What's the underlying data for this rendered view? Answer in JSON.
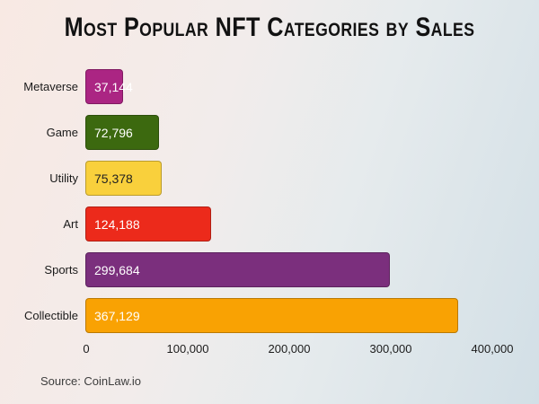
{
  "title": "Most Popular NFT Categories by Sales",
  "source": "Source: CoinLaw.io",
  "colors": {
    "background_left": "#f8e9e3",
    "background_right": "#d2dfe6",
    "title_text": "#121212",
    "axis_text": "#1c1c1c",
    "source_text": "#3d3d3d"
  },
  "chart_data": {
    "type": "bar",
    "orientation": "horizontal",
    "title": "Most Popular NFT Categories by Sales",
    "xlabel": "",
    "ylabel": "",
    "categories": [
      "Metaverse",
      "Game",
      "Utility",
      "Art",
      "Sports",
      "Collectible"
    ],
    "values": [
      37144,
      72796,
      75378,
      124188,
      299684,
      367129
    ],
    "value_labels": [
      "37,144",
      "72,796",
      "75,378",
      "124,188",
      "299,684",
      "367,129"
    ],
    "bar_colors": [
      "#ab2583",
      "#3c690f",
      "#f9d03c",
      "#ec2a1b",
      "#7b2f7d",
      "#f9a203"
    ],
    "value_label_colors": [
      "#ffffff",
      "#ffffff",
      "#222222",
      "#ffffff",
      "#ffffff",
      "#ffffff"
    ],
    "xlim": [
      0,
      400000
    ],
    "x_ticks": [
      0,
      100000,
      200000,
      300000,
      400000
    ],
    "x_tick_labels": [
      "0",
      "100,000",
      "200,000",
      "300,000",
      "400,000"
    ],
    "grid": false,
    "legend": false
  }
}
